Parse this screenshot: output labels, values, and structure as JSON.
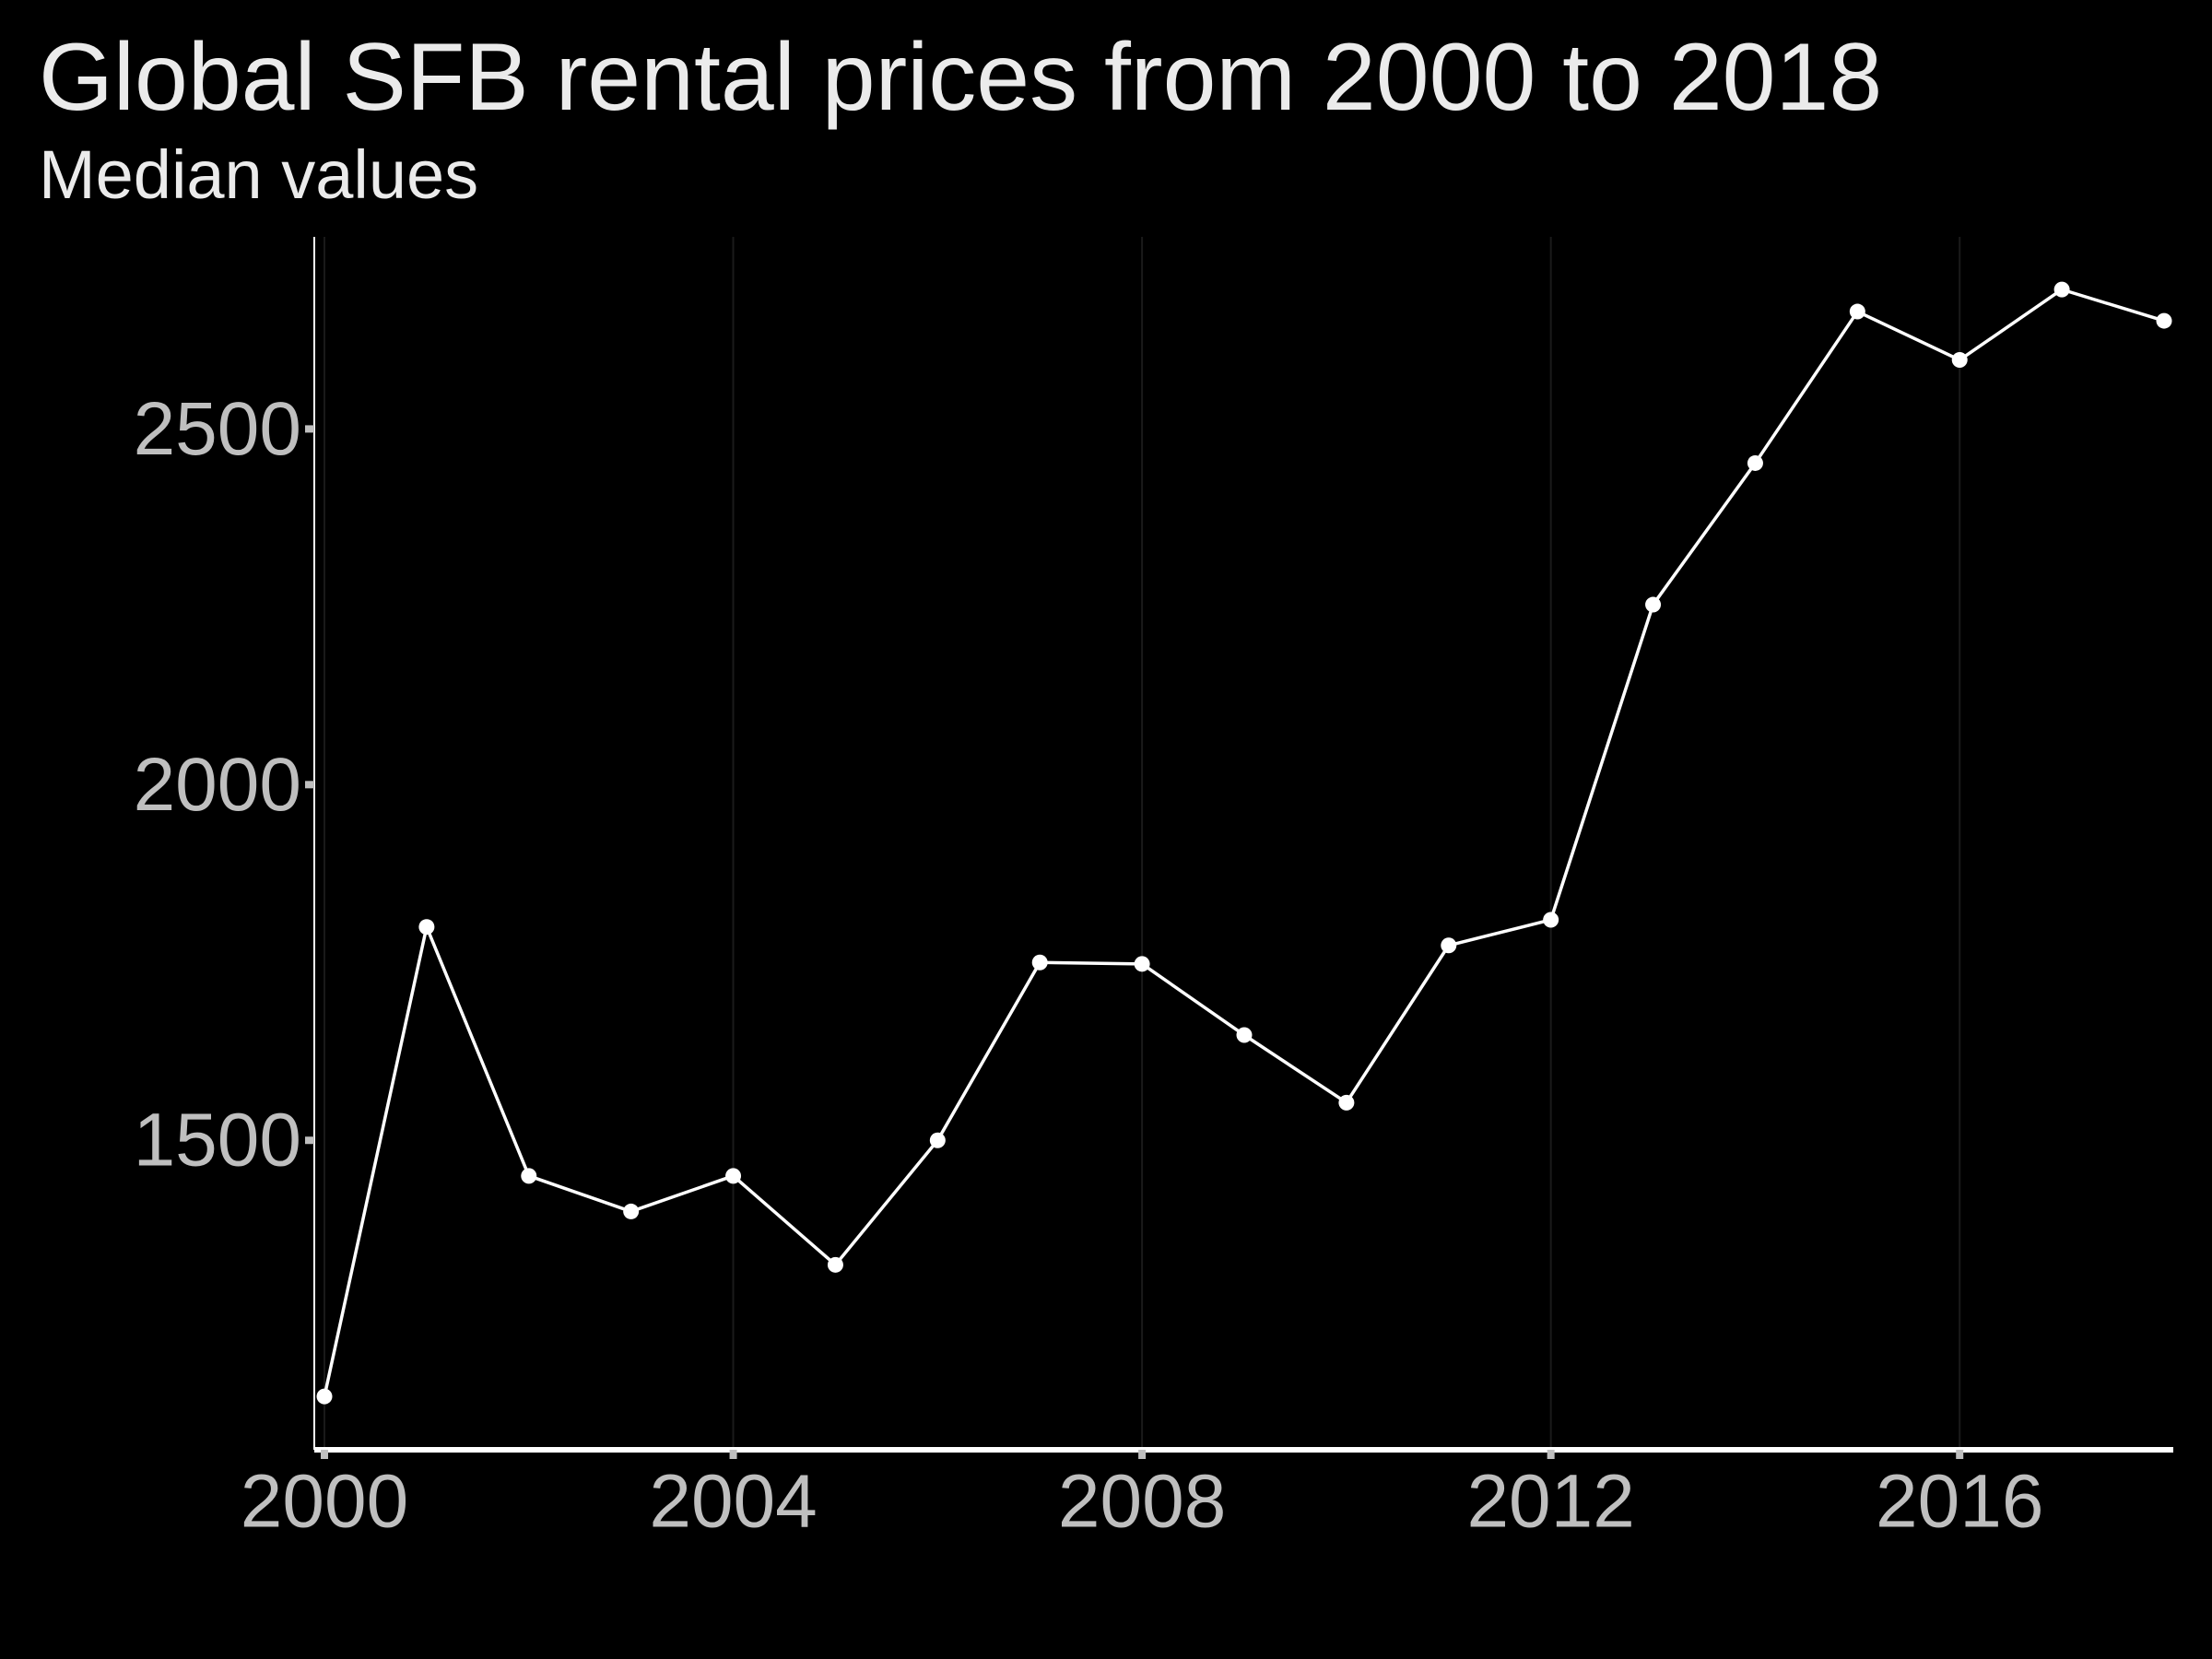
{
  "chart_data": {
    "type": "line",
    "title": "Global SFB rental prices from 2000 to 2018",
    "subtitle": "Median values",
    "xlabel": "",
    "ylabel": "",
    "x": [
      2000,
      2001,
      2002,
      2003,
      2004,
      2005,
      2006,
      2007,
      2008,
      2009,
      2010,
      2011,
      2012,
      2013,
      2014,
      2015,
      2016,
      2017,
      2018
    ],
    "values": [
      1140,
      1800,
      1450,
      1400,
      1450,
      1325,
      1500,
      1750,
      1748,
      1648,
      1553,
      1774,
      1810,
      2253,
      2452,
      2665,
      2597,
      2696,
      2652
    ],
    "xlim": [
      2000,
      2018
    ],
    "ylim": [
      1065,
      2770
    ],
    "xticks": [
      "2000",
      "2004",
      "2008",
      "2012",
      "2016"
    ],
    "yticks": [
      "1500",
      "2000",
      "2500"
    ],
    "grid": true,
    "colors": {
      "background": "#000000",
      "line": "#ffffff",
      "text": "#ebebeb",
      "tick_label": "#bfbfbf",
      "axis": "#ffffff",
      "grid": "#1a1a1a"
    }
  }
}
